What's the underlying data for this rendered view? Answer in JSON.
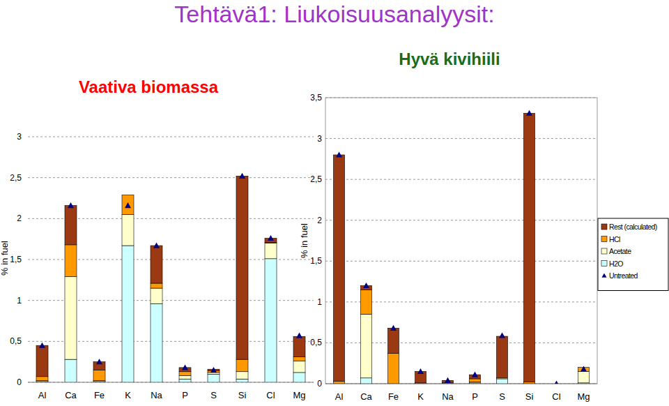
{
  "title": "Tehtävä1: Liukoisuusanalyysit:",
  "chart_data": [
    {
      "type": "bar",
      "title": "Vaativa biomassa",
      "ylabel": "% in fuel",
      "stacked": true,
      "grid": true,
      "categories": [
        "Al",
        "Ca",
        "Fe",
        "K",
        "Na",
        "P",
        "S",
        "Si",
        "Cl",
        "Mg"
      ],
      "ylim": [
        0,
        3
      ],
      "yticks": [
        0,
        {
          "value": 0.5,
          "label": "0,5"
        },
        1,
        {
          "value": 1.5,
          "label": "1,5"
        },
        2,
        {
          "value": 2.5,
          "label": "2,5"
        },
        3
      ],
      "series": [
        {
          "name": "H2O",
          "color": "#ccffff",
          "values": [
            0.01,
            0.28,
            0.01,
            1.67,
            0.96,
            0.04,
            0.1,
            0.04,
            1.51,
            0.12
          ]
        },
        {
          "name": "Acetate",
          "color": "#ffffcc",
          "values": [
            0.01,
            1.01,
            0.01,
            0.38,
            0.19,
            0.04,
            0.02,
            0.09,
            0.19,
            0.14
          ]
        },
        {
          "name": "HCl",
          "color": "#ff9900",
          "values": [
            0.05,
            0.39,
            0.13,
            0.24,
            0.06,
            0.05,
            0.02,
            0.15,
            0.01,
            0.05
          ]
        },
        {
          "name": "Rest (calculated)",
          "color": "#9b3a12",
          "values": [
            0.38,
            0.48,
            0.1,
            0,
            0.46,
            0.05,
            0.02,
            2.24,
            0.05,
            0.25
          ]
        },
        {
          "name": "Untreated",
          "type": "scatter",
          "marker": "triangle",
          "color": "#000080",
          "values": [
            0.45,
            2.16,
            0.25,
            2.16,
            1.67,
            0.18,
            0.15,
            2.52,
            1.76,
            0.57
          ]
        }
      ]
    },
    {
      "type": "bar",
      "title": "Hyvä kivihiili",
      "ylabel": "% in fuel",
      "stacked": true,
      "grid": true,
      "legend": "right",
      "categories": [
        "Al",
        "Ca",
        "Fe",
        "K",
        "Na",
        "P",
        "S",
        "Si",
        "Cl",
        "Mg"
      ],
      "ylim": [
        0,
        3.5
      ],
      "yticks": [
        0,
        {
          "value": 0.5,
          "label": "0,5"
        },
        1,
        {
          "value": 1.5,
          "label": "1,5"
        },
        2,
        {
          "value": 2.5,
          "label": "2,5"
        },
        3,
        {
          "value": 3.5,
          "label": "3,5"
        }
      ],
      "series": [
        {
          "name": "H2O",
          "color": "#ccffff",
          "values": [
            0,
            0.07,
            0,
            0,
            0,
            0.01,
            0.06,
            0,
            0,
            0.01
          ]
        },
        {
          "name": "Acetate",
          "color": "#ffffcc",
          "values": [
            0,
            0.78,
            0,
            0,
            0,
            0.01,
            0.01,
            0,
            0,
            0.14
          ]
        },
        {
          "name": "HCl",
          "color": "#ff9900",
          "values": [
            0.03,
            0.3,
            0.37,
            0.01,
            0.01,
            0.04,
            0,
            0.02,
            0,
            0.05
          ]
        },
        {
          "name": "Rest (calculated)",
          "color": "#9b3a12",
          "values": [
            2.77,
            0.05,
            0.31,
            0.14,
            0.03,
            0.05,
            0.51,
            3.29,
            0,
            0
          ]
        },
        {
          "name": "Untreated",
          "type": "scatter",
          "marker": "triangle",
          "color": "#000080",
          "values": [
            2.8,
            1.2,
            0.68,
            0.15,
            0.04,
            0.11,
            0.59,
            3.31,
            0,
            0.18
          ]
        }
      ]
    }
  ]
}
